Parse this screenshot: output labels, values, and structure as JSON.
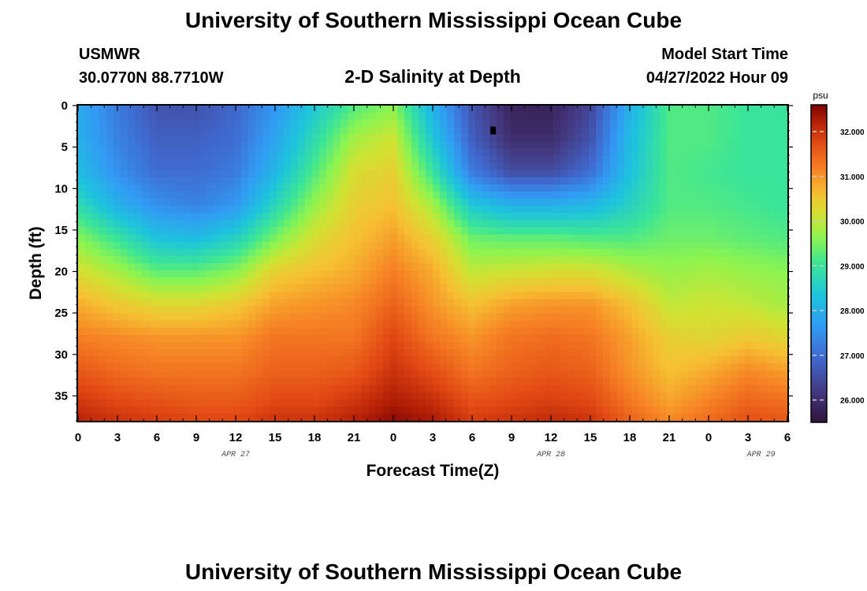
{
  "header": {
    "title": "University of Southern Mississippi Ocean Cube",
    "station": "USMWR",
    "location": "30.0770N  88.7710W",
    "subtitle": "2-D Salinity at Depth",
    "model_label": "Model Start Time",
    "model_time": "04/27/2022 Hour 09"
  },
  "footer": {
    "title": "University of Southern Mississippi Ocean Cube"
  },
  "colors": {
    "marker": "#000000",
    "frame": "#000000"
  },
  "chart_data": {
    "type": "heatmap",
    "title": "2-D Salinity at Depth",
    "xlabel": "Forecast Time(Z)",
    "ylabel": "Depth (ft)",
    "x_range": [
      0,
      54
    ],
    "y_range": [
      0,
      38
    ],
    "x_ticks": [
      0,
      3,
      6,
      9,
      12,
      15,
      18,
      21,
      24,
      27,
      30,
      33,
      36,
      39,
      42,
      45,
      48,
      51,
      54
    ],
    "x_tick_labels": [
      "0",
      "3",
      "6",
      "9",
      "12",
      "15",
      "18",
      "21",
      "0",
      "3",
      "6",
      "9",
      "12",
      "15",
      "18",
      "21",
      "0",
      "3",
      "6"
    ],
    "y_ticks": [
      0,
      5,
      10,
      15,
      20,
      25,
      30,
      35
    ],
    "y_tick_labels": [
      "0",
      "5",
      "10",
      "15",
      "20",
      "25",
      "30",
      "35"
    ],
    "date_labels": [
      {
        "label": "APR 27",
        "hour": 12
      },
      {
        "label": "APR 28",
        "hour": 36
      },
      {
        "label": "APR 29",
        "hour": 52
      }
    ],
    "colorbar": {
      "unit": "psu",
      "min": 25.5,
      "max": 32.6,
      "ticks": [
        26.0,
        27.0,
        28.0,
        29.0,
        30.0,
        31.0,
        32.0
      ],
      "tick_labels": [
        "26.000",
        "27.000",
        "28.000",
        "29.000",
        "30.000",
        "31.000",
        "32.000"
      ]
    },
    "current_time_marker": {
      "hour": 31.6,
      "depth": 3
    },
    "depths": [
      0,
      4,
      8,
      12,
      16,
      20,
      24,
      28,
      32,
      36,
      38
    ],
    "hours": [
      0,
      3,
      6,
      9,
      12,
      15,
      18,
      21,
      24,
      27,
      30,
      33,
      36,
      39,
      42,
      45,
      48,
      51,
      54
    ],
    "salinity": [
      [
        27.9,
        27.2,
        26.6,
        26.6,
        26.9,
        27.6,
        28.4,
        29.2,
        29.6,
        28.0,
        26.6,
        25.8,
        25.8,
        26.4,
        28.0,
        29.2,
        29.2,
        29.0,
        29.0
      ],
      [
        28.0,
        27.3,
        26.8,
        26.8,
        27.0,
        27.8,
        28.8,
        29.8,
        30.1,
        28.4,
        26.8,
        26.0,
        26.0,
        26.6,
        28.2,
        29.2,
        29.2,
        29.0,
        29.0
      ],
      [
        28.2,
        27.5,
        27.0,
        27.0,
        27.2,
        28.1,
        29.2,
        30.2,
        30.4,
        29.0,
        27.2,
        26.5,
        26.5,
        27.0,
        28.3,
        29.2,
        29.1,
        29.0,
        29.0
      ],
      [
        28.8,
        28.0,
        27.5,
        27.3,
        27.6,
        28.7,
        29.7,
        30.4,
        30.6,
        29.8,
        28.4,
        28.0,
        28.0,
        28.1,
        28.6,
        29.2,
        29.2,
        29.1,
        29.0
      ],
      [
        29.6,
        29.0,
        28.3,
        28.2,
        28.6,
        29.5,
        30.2,
        30.6,
        30.9,
        30.4,
        29.4,
        29.3,
        29.3,
        29.2,
        29.2,
        29.4,
        29.4,
        29.3,
        29.2
      ],
      [
        30.2,
        29.8,
        29.3,
        29.3,
        29.6,
        30.4,
        30.6,
        30.8,
        31.2,
        30.8,
        30.0,
        30.1,
        30.2,
        30.2,
        29.9,
        29.7,
        29.8,
        29.7,
        29.6
      ],
      [
        30.8,
        30.5,
        30.3,
        30.3,
        30.5,
        30.9,
        31.0,
        31.1,
        31.5,
        31.0,
        30.6,
        30.9,
        31.0,
        31.0,
        30.6,
        30.0,
        30.1,
        30.0,
        29.8
      ],
      [
        31.2,
        31.1,
        31.0,
        31.0,
        31.0,
        31.3,
        31.3,
        31.3,
        31.8,
        31.3,
        31.0,
        31.3,
        31.4,
        31.3,
        30.9,
        30.4,
        30.3,
        30.5,
        30.3
      ],
      [
        31.6,
        31.4,
        31.3,
        31.3,
        31.3,
        31.5,
        31.5,
        31.6,
        32.0,
        31.7,
        31.3,
        31.5,
        31.6,
        31.5,
        31.0,
        30.6,
        30.8,
        31.1,
        30.9
      ],
      [
        32.0,
        31.8,
        31.7,
        31.6,
        31.6,
        31.8,
        31.8,
        32.0,
        32.3,
        32.1,
        31.7,
        31.8,
        31.9,
        31.8,
        31.3,
        30.9,
        31.2,
        31.5,
        31.4
      ],
      [
        32.2,
        32.0,
        31.9,
        31.8,
        31.8,
        32.0,
        32.0,
        32.2,
        32.5,
        32.3,
        31.9,
        32.0,
        32.1,
        32.0,
        31.5,
        31.1,
        31.4,
        31.7,
        31.6
      ]
    ]
  }
}
